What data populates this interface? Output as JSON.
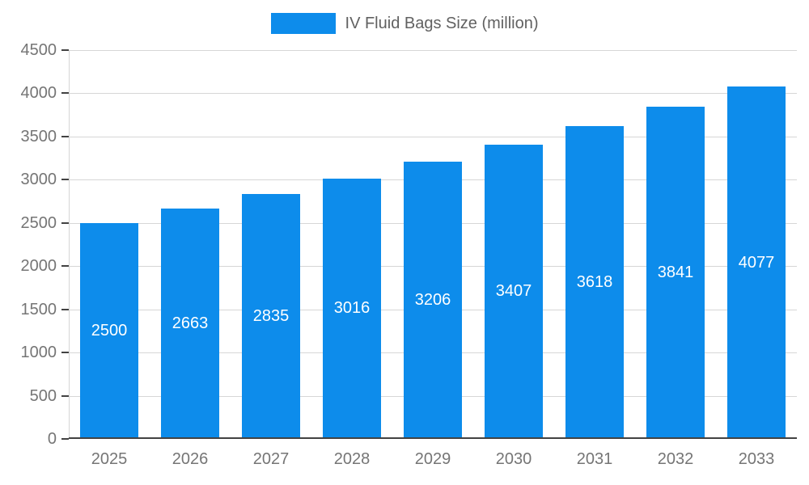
{
  "chart_data": {
    "type": "bar",
    "series_name": "IV Fluid Bags Size (million)",
    "categories": [
      "2025",
      "2026",
      "2027",
      "2028",
      "2029",
      "2030",
      "2031",
      "2032",
      "2033"
    ],
    "values": [
      2500,
      2663,
      2835,
      3016,
      3206,
      3407,
      3618,
      3841,
      4077
    ],
    "title": "",
    "xlabel": "",
    "ylabel": "",
    "ylim": [
      0,
      4500
    ],
    "ytick_step": 500,
    "grid": true,
    "legend_position": "top",
    "bar_color": "#0d8ceb",
    "bar_label_color": "#ffffff",
    "axis_text_color": "#757575",
    "grid_color": "#d6d6d6",
    "axis_line_color": "#424242"
  }
}
